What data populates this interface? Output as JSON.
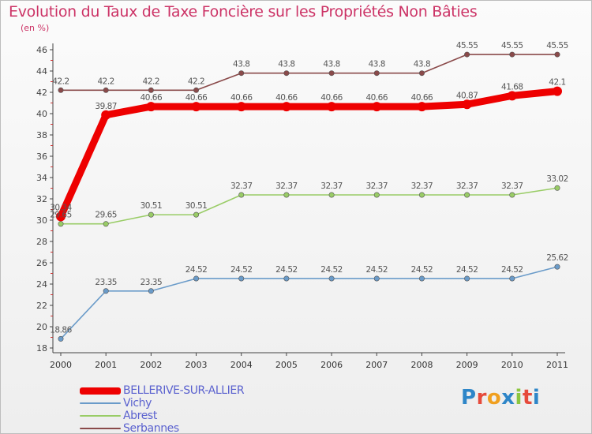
{
  "title": "Evolution du Taux de Taxe Foncière sur les Propriétés Non Bâties",
  "unit_label": "(en %)",
  "logo_text": "Proxiti",
  "chart_data": {
    "type": "line",
    "title": "Evolution du Taux de Taxe Foncière sur les Propriétés Non Bâties",
    "ylabel": "(en %)",
    "xlabel": "",
    "ylim": [
      18,
      46
    ],
    "yticks": [
      18,
      20,
      22,
      24,
      26,
      28,
      30,
      32,
      34,
      36,
      38,
      40,
      42,
      44,
      46
    ],
    "grid": false,
    "legend_position": "bottom-left",
    "categories": [
      "2000",
      "2001",
      "2002",
      "2003",
      "2004",
      "2005",
      "2006",
      "2007",
      "2008",
      "2009",
      "2010",
      "2011"
    ],
    "series": [
      {
        "name": "BELLERIVE-SUR-ALLIER",
        "color": "#ee0000",
        "values": [
          30.34,
          39.87,
          40.66,
          40.66,
          40.66,
          40.66,
          40.66,
          40.66,
          40.66,
          40.87,
          41.68,
          42.1
        ],
        "labels": [
          "30.34",
          "39.87",
          "40.66",
          "40.66",
          "40.66",
          "40.66",
          "40.66",
          "40.66",
          "40.66",
          "40.87",
          "41.68",
          "42.1"
        ]
      },
      {
        "name": "Vichy",
        "color": "#6a9bc9",
        "values": [
          18.86,
          23.35,
          23.35,
          24.52,
          24.52,
          24.52,
          24.52,
          24.52,
          24.52,
          24.52,
          24.52,
          25.62
        ],
        "labels": [
          "18.86",
          "23.35",
          "23.35",
          "24.52",
          "24.52",
          "24.52",
          "24.52",
          "24.52",
          "24.52",
          "24.52",
          "24.52",
          "25.62"
        ]
      },
      {
        "name": "Abrest",
        "color": "#99cc66",
        "values": [
          29.65,
          29.65,
          30.51,
          30.51,
          32.37,
          32.37,
          32.37,
          32.37,
          32.37,
          32.37,
          32.37,
          33.02
        ],
        "labels": [
          "29.65",
          "29.65",
          "30.51",
          "30.51",
          "32.37",
          "32.37",
          "32.37",
          "32.37",
          "32.37",
          "32.37",
          "32.37",
          "33.02"
        ]
      },
      {
        "name": "Serbannes",
        "color": "#8a4a4a",
        "values": [
          42.2,
          42.2,
          42.2,
          42.2,
          43.8,
          43.8,
          43.8,
          43.8,
          43.8,
          45.55,
          45.55,
          45.55
        ],
        "labels": [
          "42.2",
          "42.2",
          "42.2",
          "42.2",
          "43.8",
          "43.8",
          "43.8",
          "43.8",
          "43.8",
          "45.55",
          "45.55",
          "45.55"
        ]
      }
    ]
  }
}
